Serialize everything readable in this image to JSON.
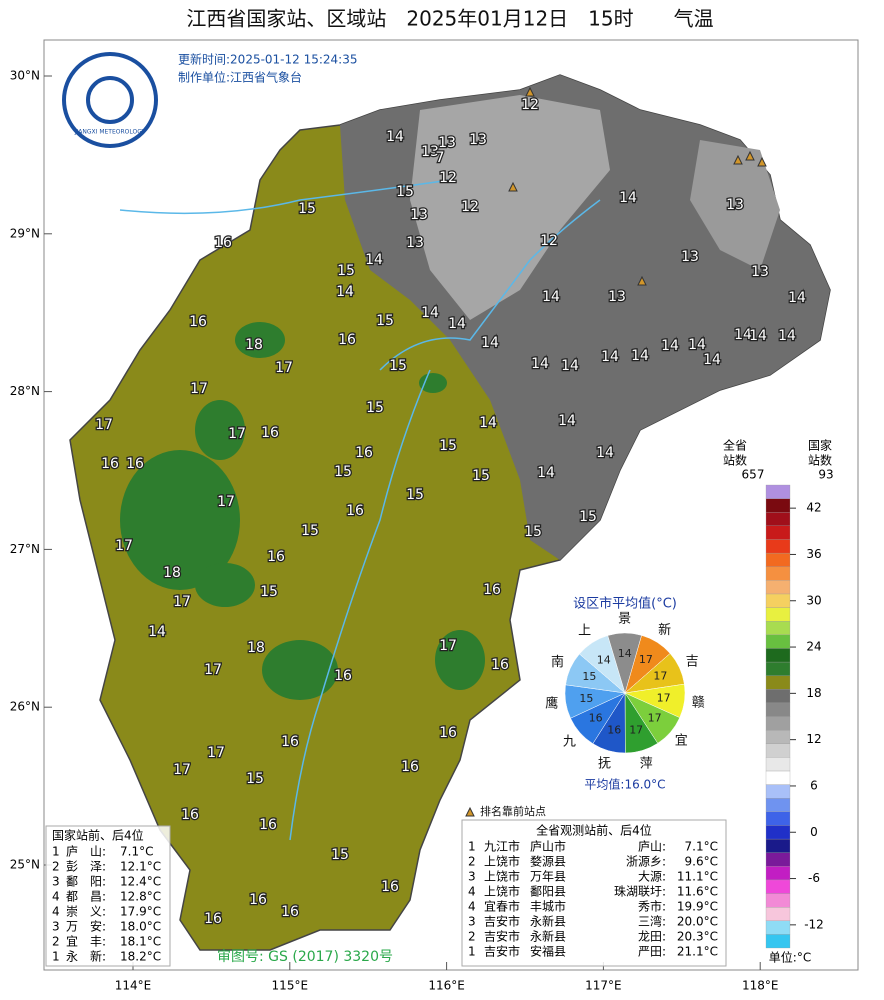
{
  "header": {
    "title": "江西省国家站、区域站　2025年01月12日　15时　　气温",
    "update_time": "更新时间:2025-01-12 15:24:35",
    "producer": "制作单位:江西省气象台",
    "logo_text": "JIANGXI METEOROLOGY"
  },
  "map": {
    "lon_ticks": [
      {
        "value": 114,
        "label": "114°E"
      },
      {
        "value": 115,
        "label": "115°E"
      },
      {
        "value": 116,
        "label": "116°E"
      },
      {
        "value": 117,
        "label": "117°E"
      },
      {
        "value": 118,
        "label": "118°E"
      }
    ],
    "lat_ticks": [
      {
        "value": 30,
        "label": "30°N"
      },
      {
        "value": 29,
        "label": "29°N"
      },
      {
        "value": 28,
        "label": "28°N"
      },
      {
        "value": 27,
        "label": "27°N"
      },
      {
        "value": 26,
        "label": "26°N"
      },
      {
        "value": 25,
        "label": "25°N"
      }
    ],
    "station_values": [
      12,
      14,
      13,
      13,
      13,
      7,
      12,
      15,
      12,
      15,
      13,
      12,
      16,
      13,
      14,
      15,
      14,
      14,
      13,
      13,
      13,
      14,
      13,
      14,
      15,
      14,
      14,
      16,
      14,
      16,
      18,
      17,
      15,
      14,
      14,
      14,
      14,
      14,
      14,
      14,
      14,
      14,
      14,
      17,
      15,
      14,
      14,
      14,
      14,
      17,
      17,
      16,
      16,
      16,
      16,
      15,
      15,
      15,
      15,
      16,
      17,
      15,
      15,
      15,
      17,
      16,
      18,
      15,
      17,
      16,
      14,
      18,
      17,
      17,
      16,
      16,
      16,
      16,
      17,
      17,
      15,
      16,
      16,
      16,
      15,
      16,
      16,
      16,
      16
    ],
    "approval": "审图号: GS (2017) 3320号",
    "marker_note": "排名靠前站点"
  },
  "pie": {
    "title": "设区市平均值(°C)",
    "categories": [
      "新",
      "吉",
      "赣",
      "宜",
      "萍",
      "抚",
      "九",
      "鹰",
      "南",
      "上",
      "景"
    ],
    "values": [
      17,
      17,
      17,
      17,
      17,
      16,
      16,
      15,
      15,
      14,
      14
    ],
    "colors": [
      "#f08a1c",
      "#e8c21a",
      "#f0ef2a",
      "#7ccf3c",
      "#2f9f2f",
      "#1f57c8",
      "#2a76e0",
      "#4fa0ef",
      "#8cc8f4",
      "#c7e6f7",
      "#8c8c8c"
    ],
    "average": "平均值:16.0°C"
  },
  "colorbar": {
    "total_label": [
      "全省",
      "站数"
    ],
    "national_label": [
      "国家",
      "站数"
    ],
    "total_count": 657,
    "national_count": 93,
    "ylim": [
      -15,
      45
    ],
    "ticks": [
      42,
      36,
      30,
      24,
      18,
      12,
      6,
      0,
      -6,
      -12
    ],
    "unit": "单位:°C"
  },
  "national_table": {
    "title": "国家站前、后4位",
    "rows": [
      [
        "1",
        "庐　山:",
        "7.1°C"
      ],
      [
        "2",
        "彭　泽:",
        "12.1°C"
      ],
      [
        "3",
        "鄱　阳:",
        "12.4°C"
      ],
      [
        "4",
        "都　昌:",
        "12.8°C"
      ],
      [
        "4",
        "崇　义:",
        "17.9°C"
      ],
      [
        "3",
        "万　安:",
        "18.0°C"
      ],
      [
        "2",
        "宜　丰:",
        "18.1°C"
      ],
      [
        "1",
        "永　新:",
        "18.2°C"
      ]
    ]
  },
  "province_table": {
    "title": "全省观测站前、后4位",
    "rows": [
      [
        "1",
        "九江市",
        "庐山市",
        "庐山:",
        "7.1°C"
      ],
      [
        "2",
        "上饶市",
        "婺源县",
        "浙源乡:",
        "9.6°C"
      ],
      [
        "3",
        "上饶市",
        "万年县",
        "大源:",
        "11.1°C"
      ],
      [
        "4",
        "上饶市",
        "鄱阳县",
        "珠湖联圩:",
        "11.6°C"
      ],
      [
        "4",
        "宜春市",
        "丰城市",
        "秀市:",
        "19.9°C"
      ],
      [
        "3",
        "吉安市",
        "永新县",
        "三湾:",
        "20.0°C"
      ],
      [
        "2",
        "吉安市",
        "永新县",
        "龙田:",
        "20.3°C"
      ],
      [
        "1",
        "吉安市",
        "安福县",
        "严田:",
        "21.1°C"
      ]
    ]
  }
}
